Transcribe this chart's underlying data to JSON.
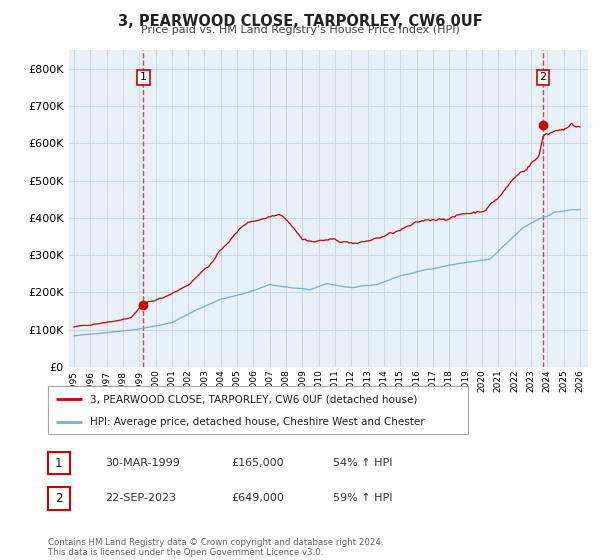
{
  "title": "3, PEARWOOD CLOSE, TARPORLEY, CW6 0UF",
  "subtitle": "Price paid vs. HM Land Registry's House Price Index (HPI)",
  "property_label": "3, PEARWOOD CLOSE, TARPORLEY, CW6 0UF (detached house)",
  "hpi_label": "HPI: Average price, detached house, Cheshire West and Chester",
  "property_color": "#cc0000",
  "hpi_color": "#7aafd4",
  "background_color": "#ffffff",
  "plot_bg_color": "#e8f0f8",
  "grid_color": "#c8d4e0",
  "ylim": [
    0,
    850000
  ],
  "yticks": [
    0,
    100000,
    200000,
    300000,
    400000,
    500000,
    600000,
    700000,
    800000
  ],
  "sale1_date": "30-MAR-1999",
  "sale1_year": 1999.25,
  "sale1_price": 165000,
  "sale1_hpi_pct": "54%",
  "sale1_label": "1",
  "sale2_date": "22-SEP-2023",
  "sale2_year": 2023.75,
  "sale2_price": 649000,
  "sale2_hpi_pct": "59%",
  "sale2_label": "2",
  "footnote": "Contains HM Land Registry data © Crown copyright and database right 2024.\nThis data is licensed under the Open Government Licence v3.0.",
  "xlim_left": 1994.7,
  "xlim_right": 2026.5
}
